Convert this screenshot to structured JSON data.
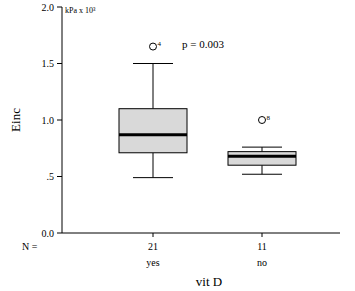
{
  "chart_data": {
    "type": "box",
    "ylabel": "Einc",
    "y_unit": "kPa x 10³",
    "xlabel": "vit D",
    "annotation": "p = 0.003",
    "categories": [
      "yes",
      "no"
    ],
    "counts_label": "N =",
    "counts": [
      21,
      11
    ],
    "color": "#d9d9d9",
    "boxes": [
      {
        "whisker_low": 0.49,
        "q1": 0.71,
        "median": 0.87,
        "q3": 1.1,
        "whisker_high": 1.5,
        "outliers": [
          {
            "value": 1.65,
            "label": "4"
          }
        ]
      },
      {
        "whisker_low": 0.52,
        "q1": 0.6,
        "median": 0.68,
        "q3": 0.72,
        "whisker_high": 0.76,
        "outliers": [
          {
            "value": 1.0,
            "label": "8"
          }
        ]
      }
    ],
    "ylim": [
      0,
      2
    ],
    "yticks": [
      {
        "value": 0,
        "label": "0.0"
      },
      {
        "value": 0.5,
        "label": ".5"
      },
      {
        "value": 1,
        "label": "1.0"
      },
      1.5,
      {
        "value": 2,
        "label": "2.0"
      }
    ],
    "grid": false
  }
}
